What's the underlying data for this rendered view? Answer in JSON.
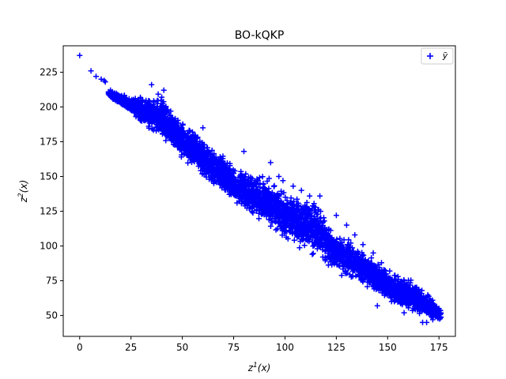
{
  "chart_data": {
    "type": "scatter",
    "title": "BO-kQKP",
    "xlabel": {
      "base": "z",
      "sup": "1",
      "rest": "(x)"
    },
    "ylabel": {
      "base": "z",
      "sup": "2",
      "rest": "(x)"
    },
    "xlim": [
      -8,
      183
    ],
    "ylim": [
      35,
      244
    ],
    "xticks": [
      0,
      25,
      50,
      75,
      100,
      125,
      150,
      175
    ],
    "yticks": [
      50,
      75,
      100,
      125,
      150,
      175,
      200,
      225
    ],
    "grid": false,
    "legend": {
      "position": "top-right",
      "entries": [
        {
          "label": "ỹ",
          "marker": "plus",
          "color": "#0000ff"
        }
      ]
    },
    "series": [
      {
        "name": "ỹ",
        "color": "#0000ff",
        "marker": "plus",
        "band": {
          "x_range": [
            14,
            176
          ],
          "lower_edge": [
            [
              14,
              208
            ],
            [
              25,
              194
            ],
            [
              50,
              160
            ],
            [
              75,
              128
            ],
            [
              100,
              104
            ],
            [
              125,
              80
            ],
            [
              150,
              60
            ],
            [
              165,
              48
            ],
            [
              176,
              45
            ]
          ],
          "upper_edge": [
            [
              14,
              212
            ],
            [
              25,
              208
            ],
            [
              40,
              210
            ],
            [
              50,
              192
            ],
            [
              75,
              160
            ],
            [
              90,
              152
            ],
            [
              100,
              140
            ],
            [
              115,
              135
            ],
            [
              125,
              112
            ],
            [
              140,
              98
            ],
            [
              150,
              83
            ],
            [
              165,
              75
            ],
            [
              176,
              55
            ]
          ],
          "point_count": 4000
        },
        "points": [
          [
            0,
            237
          ],
          [
            5.5,
            226
          ],
          [
            8,
            222
          ],
          [
            10.5,
            220
          ],
          [
            12,
            219
          ],
          [
            12.5,
            218
          ],
          [
            15,
            212
          ],
          [
            17,
            210
          ],
          [
            22,
            205
          ],
          [
            25,
            203
          ],
          [
            28,
            204
          ],
          [
            35,
            216
          ],
          [
            40,
            207
          ],
          [
            41,
            212
          ],
          [
            43,
            198
          ],
          [
            60,
            185
          ],
          [
            80,
            168
          ],
          [
            93,
            160
          ],
          [
            97,
            150
          ],
          [
            99,
            147
          ],
          [
            104,
            143
          ],
          [
            108,
            140
          ],
          [
            112,
            136
          ],
          [
            117,
            136
          ],
          [
            125,
            122
          ],
          [
            130,
            115
          ],
          [
            134,
            108
          ],
          [
            138,
            101
          ],
          [
            143,
            95
          ],
          [
            147,
            88
          ],
          [
            151,
            82
          ],
          [
            155,
            78
          ],
          [
            158,
            75
          ],
          [
            163,
            65
          ],
          [
            166,
            58
          ],
          [
            170,
            52
          ],
          [
            171,
            51
          ],
          [
            175,
            55
          ],
          [
            167,
            45
          ],
          [
            169,
            45
          ],
          [
            172,
            47
          ],
          [
            158,
            52
          ],
          [
            145,
            57
          ]
        ]
      }
    ]
  }
}
